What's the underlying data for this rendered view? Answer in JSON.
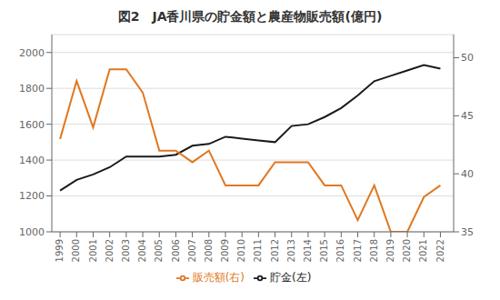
{
  "chart_data": {
    "type": "line",
    "title": "図2　JA香川県の貯金額と農産物販売額(億円)",
    "x": [
      1999,
      2000,
      2001,
      2002,
      2003,
      2004,
      2005,
      2006,
      2007,
      2008,
      2009,
      2010,
      2011,
      2012,
      2013,
      2014,
      2015,
      2016,
      2017,
      2018,
      2019,
      2020,
      2021,
      2022
    ],
    "xlim": [
      1998.5,
      2022.8
    ],
    "xticks": [
      1999,
      2000,
      2001,
      2002,
      2003,
      2004,
      2005,
      2006,
      2007,
      2008,
      2009,
      2010,
      2011,
      2012,
      2013,
      2014,
      2015,
      2016,
      2017,
      2018,
      2019,
      2020,
      2021,
      2022
    ],
    "series": [
      {
        "name": "貯金(左)",
        "color": "#1a1a1a",
        "values": [
          1230,
          1290,
          1320,
          1360,
          1420,
          1420,
          1420,
          1430,
          1480,
          1490,
          1530,
          1520,
          1510,
          1500,
          1590,
          1600,
          1640,
          1690,
          1760,
          1840,
          1870,
          1900,
          1930,
          1910
        ]
      },
      {
        "name": "販売額(右)",
        "color": "#e07820",
        "axis": "y2",
        "values": [
          43,
          48,
          44,
          49,
          49,
          47,
          42,
          42,
          41,
          42,
          39,
          39,
          39,
          41,
          41,
          41,
          39,
          39,
          36,
          39,
          35,
          35,
          38,
          39
        ]
      }
    ],
    "ylim": [
      1000,
      2100
    ],
    "yticks": [
      1000,
      1200,
      1400,
      1600,
      1800,
      2000
    ],
    "y2lim": [
      35,
      52
    ],
    "y2ticks": [
      35,
      40,
      45,
      50
    ],
    "grid": true,
    "legend": "bottom"
  }
}
